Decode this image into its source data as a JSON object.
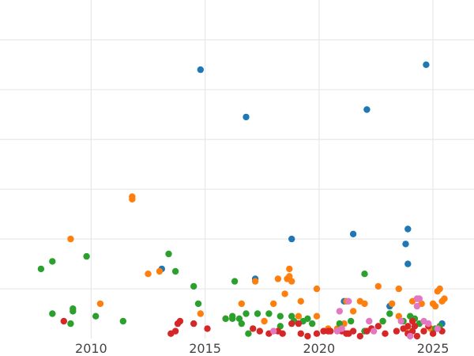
{
  "chart_data": {
    "type": "scatter",
    "title": "",
    "xlabel": "",
    "ylabel": "",
    "grid": true,
    "legend": "none",
    "xlim": [
      2006,
      2026.8
    ],
    "ylim": [
      0,
      6.8
    ],
    "xticks": [
      2010,
      2015,
      2020,
      2025
    ],
    "xtick_labels": [
      "2010",
      "2015",
      "2020",
      "2025"
    ],
    "yticks": [
      1,
      2,
      3,
      4,
      5,
      6
    ],
    "ytick_labels_visible": false,
    "series": [
      {
        "color": "#1f77b4",
        "points": [
          [
            2014.8,
            5.4
          ],
          [
            2016.8,
            4.45
          ],
          [
            2022.1,
            4.6
          ],
          [
            2024.7,
            5.5
          ],
          [
            2018.8,
            2.0
          ],
          [
            2021.5,
            2.1
          ],
          [
            2023.9,
            2.2
          ],
          [
            2023.8,
            1.9
          ],
          [
            2023.9,
            1.5
          ],
          [
            2013.1,
            1.4
          ],
          [
            2017.2,
            1.2
          ],
          [
            2021.1,
            0.75
          ],
          [
            2023.1,
            0.65
          ],
          [
            2025.4,
            0.3
          ]
        ]
      },
      {
        "color": "#ff7f0e",
        "points": [
          [
            2009.1,
            2.0
          ],
          [
            2011.8,
            2.85
          ],
          [
            2011.8,
            2.8
          ],
          [
            2012.5,
            1.3
          ],
          [
            2013.0,
            1.35
          ],
          [
            2010.4,
            0.7
          ],
          [
            2014.8,
            0.5
          ],
          [
            2015.9,
            0.4
          ],
          [
            2016.6,
            0.7
          ],
          [
            2017.2,
            1.15
          ],
          [
            2017.6,
            0.35
          ],
          [
            2018.0,
            0.7
          ],
          [
            2018.2,
            1.2
          ],
          [
            2018.5,
            0.9
          ],
          [
            2018.7,
            1.4
          ],
          [
            2018.7,
            1.25
          ],
          [
            2018.8,
            1.15
          ],
          [
            2018.6,
            1.2
          ],
          [
            2019.1,
            0.45
          ],
          [
            2019.2,
            0.75
          ],
          [
            2019.9,
            0.45
          ],
          [
            2019.9,
            1.0
          ],
          [
            2020.4,
            0.2
          ],
          [
            2020.8,
            0.2
          ],
          [
            2021.1,
            0.3
          ],
          [
            2021.2,
            0.75
          ],
          [
            2021.5,
            0.55
          ],
          [
            2021.8,
            0.75
          ],
          [
            2022.0,
            0.7
          ],
          [
            2022.6,
            1.05
          ],
          [
            2022.8,
            0.35
          ],
          [
            2023.2,
            0.7
          ],
          [
            2023.5,
            1.0
          ],
          [
            2023.5,
            0.45
          ],
          [
            2023.8,
            0.2
          ],
          [
            2024.1,
            0.75
          ],
          [
            2024.3,
            0.8
          ],
          [
            2024.5,
            0.7
          ],
          [
            2024.9,
            0.2
          ],
          [
            2025.0,
            0.7
          ],
          [
            2025.1,
            0.65
          ],
          [
            2025.2,
            0.95
          ],
          [
            2025.4,
            0.75
          ],
          [
            2025.5,
            0.8
          ],
          [
            2025.3,
            1.0
          ]
        ]
      },
      {
        "color": "#2ca02c",
        "points": [
          [
            2007.8,
            1.4
          ],
          [
            2008.3,
            1.55
          ],
          [
            2009.8,
            1.65
          ],
          [
            2008.3,
            0.5
          ],
          [
            2009.2,
            0.55
          ],
          [
            2009.2,
            0.6
          ],
          [
            2009.1,
            0.3
          ],
          [
            2010.2,
            0.45
          ],
          [
            2011.4,
            0.35
          ],
          [
            2013.4,
            1.7
          ],
          [
            2013.7,
            1.35
          ],
          [
            2014.5,
            1.05
          ],
          [
            2014.7,
            0.7
          ],
          [
            2015.9,
            0.4
          ],
          [
            2016.2,
            0.45
          ],
          [
            2016.2,
            0.4
          ],
          [
            2016.5,
            0.4
          ],
          [
            2016.6,
            0.3
          ],
          [
            2016.8,
            0.5
          ],
          [
            2016.9,
            0.1
          ],
          [
            2017.3,
            0.5
          ],
          [
            2017.8,
            0.5
          ],
          [
            2018.3,
            0.45
          ],
          [
            2018.3,
            0.25
          ],
          [
            2018.8,
            0.45
          ],
          [
            2018.9,
            0.35
          ],
          [
            2019.3,
            0.35
          ],
          [
            2019.5,
            0.4
          ],
          [
            2019.7,
            0.3
          ],
          [
            2020.9,
            0.3
          ],
          [
            2021.4,
            0.35
          ],
          [
            2022.0,
            1.3
          ],
          [
            2022.0,
            0.15
          ],
          [
            2022.3,
            0.2
          ],
          [
            2022.8,
            0.35
          ],
          [
            2023.1,
            0.5
          ],
          [
            2023.7,
            0.35
          ],
          [
            2024.0,
            0.45
          ],
          [
            2024.2,
            0.4
          ],
          [
            2024.4,
            0.3
          ],
          [
            2025.1,
            0.2
          ],
          [
            2025.3,
            0.25
          ],
          [
            2016.3,
            1.15
          ]
        ]
      },
      {
        "color": "#d62728",
        "points": [
          [
            2008.8,
            0.35
          ],
          [
            2013.5,
            0.1
          ],
          [
            2013.7,
            0.15
          ],
          [
            2013.8,
            0.3
          ],
          [
            2013.9,
            0.35
          ],
          [
            2014.5,
            0.3
          ],
          [
            2015.1,
            0.2
          ],
          [
            2017.1,
            0.2
          ],
          [
            2017.4,
            0.15
          ],
          [
            2017.8,
            0.1
          ],
          [
            2018.2,
            0.15
          ],
          [
            2018.4,
            0.1
          ],
          [
            2018.8,
            0.3
          ],
          [
            2019.1,
            0.3
          ],
          [
            2019.2,
            0.1
          ],
          [
            2019.5,
            0.05
          ],
          [
            2019.9,
            0.1
          ],
          [
            2020.2,
            0.15
          ],
          [
            2020.4,
            0.15
          ],
          [
            2020.5,
            0.15
          ],
          [
            2021.0,
            0.15
          ],
          [
            2021.3,
            0.1
          ],
          [
            2021.5,
            0.15
          ],
          [
            2021.8,
            0.05
          ],
          [
            2022.1,
            0.15
          ],
          [
            2022.3,
            0.2
          ],
          [
            2022.6,
            0.25
          ],
          [
            2022.9,
            0.1
          ],
          [
            2023.4,
            0.15
          ],
          [
            2023.7,
            0.2
          ],
          [
            2023.9,
            0.25
          ],
          [
            2023.9,
            0.1
          ],
          [
            2024.1,
            0.15
          ],
          [
            2024.2,
            0.25
          ],
          [
            2024.3,
            0.05
          ],
          [
            2024.6,
            0.15
          ],
          [
            2024.8,
            0.25
          ],
          [
            2025.0,
            0.1
          ],
          [
            2025.2,
            0.2
          ],
          [
            2025.4,
            0.15
          ],
          [
            2024.1,
            0.35
          ],
          [
            2021.2,
            0.1
          ]
        ]
      },
      {
        "color": "#e377c2",
        "points": [
          [
            2018.0,
            0.15
          ],
          [
            2020.9,
            0.55
          ],
          [
            2021.3,
            0.75
          ],
          [
            2022.2,
            0.35
          ],
          [
            2022.4,
            0.15
          ],
          [
            2023.6,
            0.35
          ],
          [
            2024.3,
            0.65
          ],
          [
            2024.3,
            0.8
          ],
          [
            2024.4,
            0.8
          ],
          [
            2024.6,
            0.35
          ],
          [
            2024.8,
            0.3
          ],
          [
            2025.2,
            0.2
          ],
          [
            2020.8,
            0.15
          ],
          [
            2021.0,
            0.2
          ],
          [
            2024.0,
            0.05
          ]
        ]
      }
    ]
  }
}
